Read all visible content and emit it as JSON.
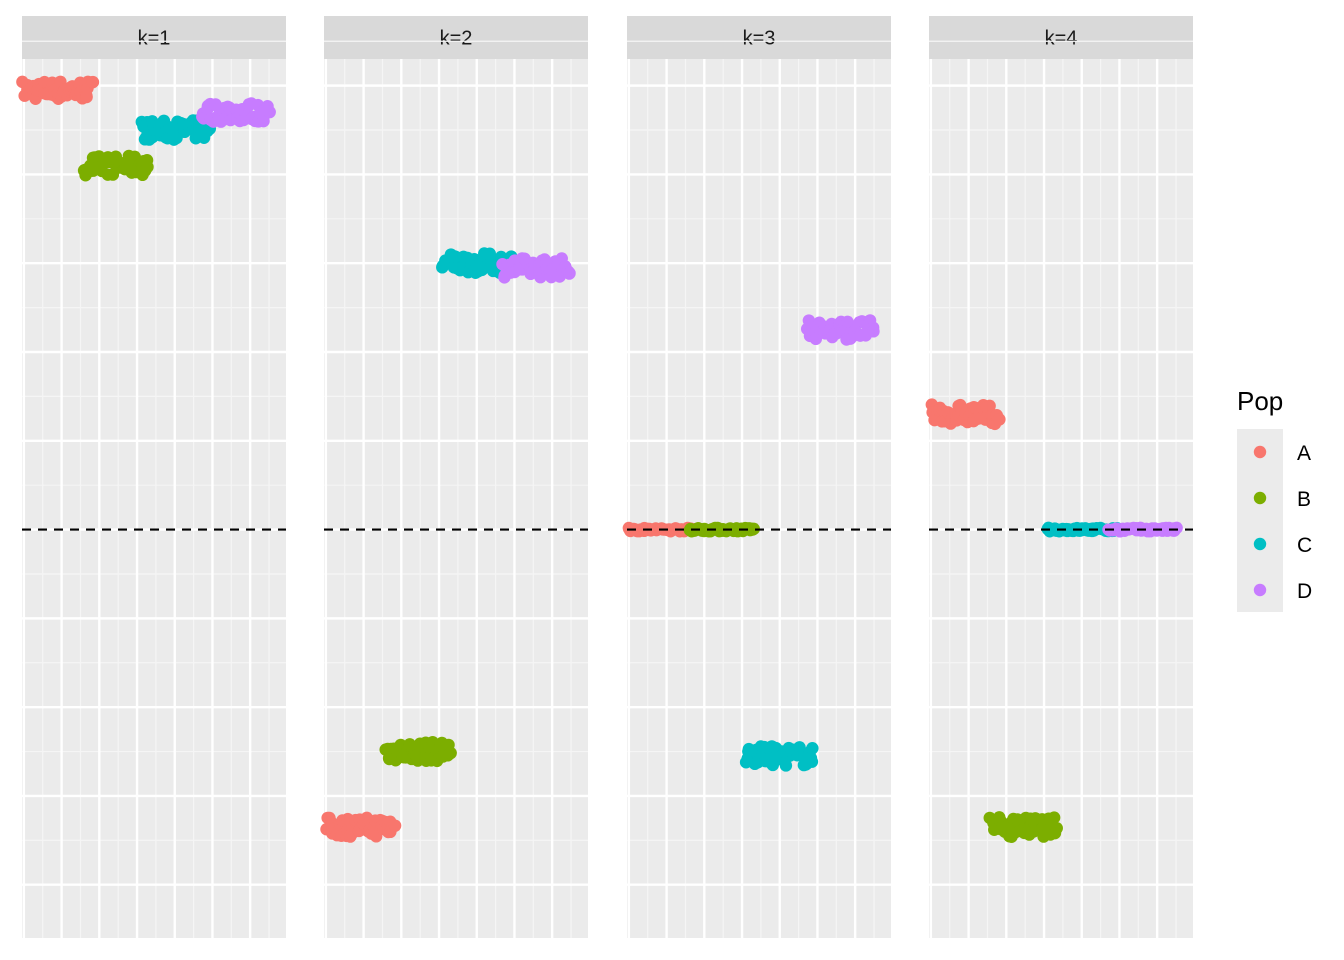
{
  "chart_data": {
    "type": "scatter",
    "facet_by": "k",
    "legend": {
      "title": "Pop",
      "entries": [
        {
          "name": "A",
          "color": "#F8766D"
        },
        {
          "name": "B",
          "color": "#7CAE00"
        },
        {
          "name": "C",
          "color": "#00BFC4"
        },
        {
          "name": "D",
          "color": "#C77CFF"
        }
      ],
      "position": "right"
    },
    "reference_line": {
      "y": 0,
      "style": "dashed",
      "color": "#000000"
    },
    "ylim": [
      -0.92,
      1.06
    ],
    "xlim": [
      0.95,
      7.95
    ],
    "grid": true,
    "panels": [
      {
        "label": "k=1",
        "groups": [
          {
            "pop": "A",
            "x": [
              1.0,
              2.8
            ],
            "y": 0.99
          },
          {
            "pop": "B",
            "x": [
              2.6,
              4.3
            ],
            "y": 0.82
          },
          {
            "pop": "C",
            "x": [
              4.1,
              5.9
            ],
            "y": 0.9
          },
          {
            "pop": "D",
            "x": [
              5.7,
              7.5
            ],
            "y": 0.94
          }
        ]
      },
      {
        "label": "k=2",
        "groups": [
          {
            "pop": "A",
            "x": [
              1.0,
              2.8
            ],
            "y": -0.67
          },
          {
            "pop": "B",
            "x": [
              2.6,
              4.3
            ],
            "y": -0.5
          },
          {
            "pop": "C",
            "x": [
              4.1,
              5.9
            ],
            "y": 0.6
          },
          {
            "pop": "D",
            "x": [
              5.7,
              7.5
            ],
            "y": 0.59
          }
        ]
      },
      {
        "label": "k=3",
        "groups": [
          {
            "pop": "A",
            "x": [
              1.0,
              2.8
            ],
            "y": 0.0
          },
          {
            "pop": "B",
            "x": [
              2.6,
              4.3
            ],
            "y": 0.0
          },
          {
            "pop": "C",
            "x": [
              4.1,
              5.9
            ],
            "y": -0.51
          },
          {
            "pop": "D",
            "x": [
              5.7,
              7.5
            ],
            "y": 0.45
          }
        ]
      },
      {
        "label": "k=4",
        "groups": [
          {
            "pop": "A",
            "x": [
              1.0,
              2.8
            ],
            "y": 0.26
          },
          {
            "pop": "B",
            "x": [
              2.6,
              4.3
            ],
            "y": -0.67
          },
          {
            "pop": "C",
            "x": [
              4.1,
              5.9
            ],
            "y": 0.0
          },
          {
            "pop": "D",
            "x": [
              5.7,
              7.5
            ],
            "y": 0.0
          }
        ]
      }
    ],
    "points_per_group": 50
  }
}
